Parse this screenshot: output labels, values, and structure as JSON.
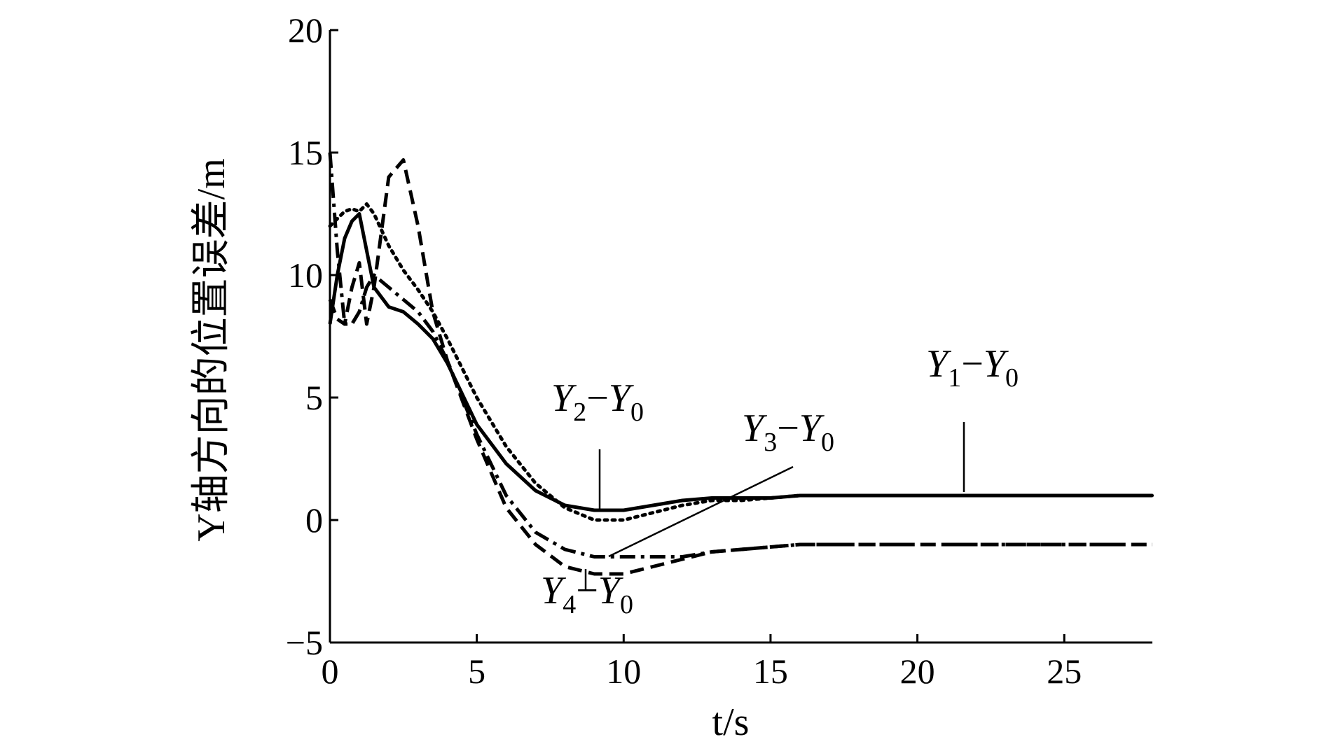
{
  "chart_data": {
    "type": "line",
    "x_label": "t/s",
    "y_label": "Y轴方向的位置误差/m",
    "x": [
      0,
      0.25,
      0.5,
      0.75,
      1,
      1.25,
      1.5,
      2,
      2.5,
      3,
      3.5,
      4,
      5,
      6,
      7,
      8,
      9,
      10,
      11,
      12,
      13,
      14,
      15,
      16,
      18,
      20,
      22,
      24,
      26,
      28
    ],
    "series": [
      {
        "name": "Y1−Y0",
        "color": "#000000",
        "linestyle": "solid",
        "values": [
          8.0,
          10.0,
          11.5,
          12.2,
          12.5,
          11.0,
          9.5,
          8.7,
          8.5,
          8.0,
          7.4,
          6.4,
          3.9,
          2.3,
          1.2,
          0.6,
          0.4,
          0.4,
          0.6,
          0.8,
          0.9,
          0.9,
          0.9,
          1.0,
          1.0,
          1.0,
          1.0,
          1.0,
          1.0,
          1.0
        ]
      },
      {
        "name": "Y2−Y0",
        "color": "#000000",
        "linestyle": "dotted",
        "values": [
          12.0,
          12.3,
          12.6,
          12.7,
          12.6,
          12.9,
          12.5,
          11.2,
          10.2,
          9.4,
          8.5,
          7.4,
          5.0,
          3.0,
          1.5,
          0.5,
          0.0,
          0.0,
          0.3,
          0.6,
          0.8,
          0.8,
          0.9,
          1.0,
          1.0,
          1.0,
          1.0,
          1.0,
          1.0,
          1.0
        ]
      },
      {
        "name": "Y3−Y0",
        "color": "#000000",
        "linestyle": "dashdot",
        "values": [
          15.0,
          11.0,
          8.0,
          8.0,
          8.5,
          9.5,
          10.0,
          9.5,
          9.0,
          8.5,
          7.7,
          6.5,
          3.5,
          1.0,
          -0.5,
          -1.2,
          -1.5,
          -1.5,
          -1.5,
          -1.5,
          -1.3,
          -1.2,
          -1.1,
          -1.0,
          -1.0,
          -1.0,
          -1.0,
          -1.0,
          -1.0,
          -1.0
        ]
      },
      {
        "name": "Y4−Y0",
        "color": "#000000",
        "linestyle": "dashed",
        "values": [
          9.0,
          8.2,
          8.0,
          9.5,
          10.5,
          8.0,
          9.5,
          14.0,
          14.7,
          12.0,
          8.5,
          6.5,
          3.3,
          0.5,
          -1.0,
          -1.9,
          -2.2,
          -2.2,
          -1.9,
          -1.6,
          -1.3,
          -1.2,
          -1.1,
          -1.0,
          -1.0,
          -1.0,
          -1.0,
          -1.0,
          -1.0,
          -1.0
        ]
      }
    ],
    "xlim": [
      0,
      28
    ],
    "xticks": [
      0,
      5,
      10,
      15,
      20,
      25
    ],
    "ylim": [
      -5,
      20
    ],
    "yticks": [
      {
        "value": -5,
        "label": "−5"
      },
      0,
      5,
      10,
      15,
      20
    ],
    "grid": false
  }
}
